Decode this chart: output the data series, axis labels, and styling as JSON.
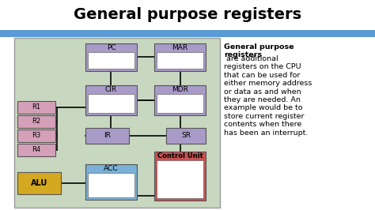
{
  "title": "General purpose registers",
  "title_fontsize": 14,
  "title_fontweight": "bold",
  "bg_color": "#ffffff",
  "header_bar_color": "#5b9bd5",
  "diagram_bg": "#c8d8c0",
  "diagram_border": "#aaaaaa",
  "reg_purple": "#a89bc8",
  "reg_pink": "#d4a0b8",
  "reg_blue": "#7ab0d8",
  "reg_gold": "#d4a820",
  "reg_red": "#c85050",
  "reg_white": "#ffffff",
  "text_color": "#000000",
  "line_color": "#111111",
  "desc_bold": "General purpose\nregisters",
  "desc_normal": " are additional\nregisters on the CPU\nthat can be used for\neither memory address\nor data as and when\nthey are needed. An\nexample would be to\nstore current register\ncontents when there\nhas been an interrupt."
}
